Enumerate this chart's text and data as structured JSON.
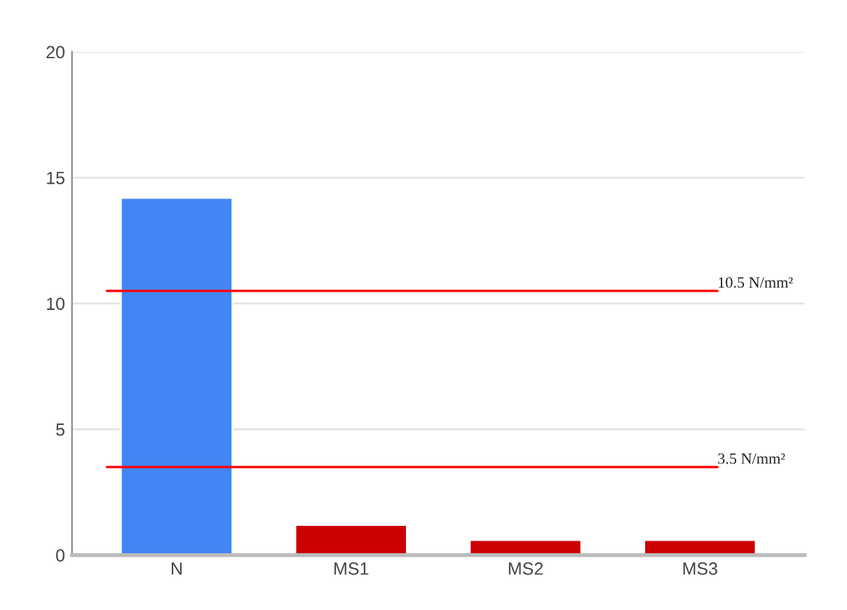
{
  "chart_data": {
    "type": "bar",
    "categories": [
      "N",
      "MS1",
      "MS2",
      "MS3"
    ],
    "values": [
      14.2,
      1.2,
      0.6,
      0.6
    ],
    "colors": [
      "#4285f4",
      "#cc0000",
      "#cc0000",
      "#cc0000"
    ],
    "ylim": [
      0,
      20
    ],
    "yticks": [
      0,
      5,
      10,
      15,
      20
    ],
    "grid": "y",
    "ref_lines": [
      {
        "axis": "y",
        "value": 10.5,
        "label": "10.5 N/mm²",
        "color": "#ff0000"
      },
      {
        "axis": "y",
        "value": 3.5,
        "label": "3.5 N/mm²",
        "color": "#ff0000"
      }
    ]
  }
}
